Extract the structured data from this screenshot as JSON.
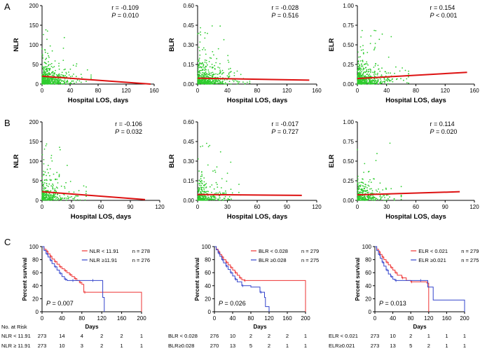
{
  "panel_labels": [
    "A",
    "B",
    "C"
  ],
  "chart_data": [
    {
      "panel": "A",
      "type": "scatter",
      "xlabel": "Hospital LOS, days",
      "ylabel": "NLR",
      "xlim": [
        0,
        160
      ],
      "ylim": [
        0,
        200
      ],
      "xticks": [
        "0",
        "40",
        "80",
        "120",
        "160"
      ],
      "yticks": [
        "0",
        "50",
        "100",
        "150",
        "200"
      ],
      "r_text": "r = -0.109",
      "p_prefix": "P",
      "p_text": " = 0.010",
      "fit": [
        [
          0,
          20
        ],
        [
          155,
          0
        ]
      ]
    },
    {
      "panel": "A",
      "type": "scatter",
      "xlabel": "Hospital LOS, days",
      "ylabel": "BLR",
      "xlim": [
        0,
        160
      ],
      "ylim": [
        0,
        0.6
      ],
      "xticks": [
        "0",
        "40",
        "80",
        "120",
        "160"
      ],
      "yticks": [
        "0.00",
        "0.15",
        "0.30",
        "0.45",
        "0.60"
      ],
      "r_text": "r = -0.028",
      "p_prefix": "P",
      "p_text": " = 0.516",
      "fit": [
        [
          0,
          0.045
        ],
        [
          150,
          0.03
        ]
      ]
    },
    {
      "panel": "A",
      "type": "scatter",
      "xlabel": "Hospital LOS, days",
      "ylabel": "ELR",
      "xlim": [
        0,
        160
      ],
      "ylim": [
        0,
        1.0
      ],
      "xticks": [
        "0",
        "40",
        "80",
        "120",
        "160"
      ],
      "yticks": [
        "0.00",
        "0.25",
        "0.50",
        "0.75",
        "1.00"
      ],
      "r_text": "r = 0.154",
      "p_prefix": "P",
      "p_text": " < 0.001",
      "fit": [
        [
          0,
          0.07
        ],
        [
          150,
          0.15
        ]
      ]
    },
    {
      "panel": "B",
      "type": "scatter",
      "xlabel": "Hospital LOS, days",
      "ylabel": "NLR",
      "xlim": [
        0,
        120
      ],
      "ylim": [
        0,
        200
      ],
      "xticks": [
        "0",
        "30",
        "60",
        "90",
        "120"
      ],
      "yticks": [
        "0",
        "50",
        "100",
        "150",
        "200"
      ],
      "r_text": "r = -0.106",
      "p_prefix": "P",
      "p_text": " = 0.032",
      "fit": [
        [
          0,
          22
        ],
        [
          105,
          2
        ]
      ]
    },
    {
      "panel": "B",
      "type": "scatter",
      "xlabel": "Hospital LOS, days",
      "ylabel": "BLR",
      "xlim": [
        0,
        120
      ],
      "ylim": [
        0,
        0.6
      ],
      "xticks": [
        "0",
        "30",
        "60",
        "90",
        "120"
      ],
      "yticks": [
        "0.00",
        "0.15",
        "0.30",
        "0.45",
        "0.60"
      ],
      "r_text": "r = -0.017",
      "p_prefix": "P",
      "p_text": " = 0.727",
      "fit": [
        [
          0,
          0.045
        ],
        [
          105,
          0.038
        ]
      ]
    },
    {
      "panel": "B",
      "type": "scatter",
      "xlabel": "Hospital LOS, days",
      "ylabel": "ELR",
      "xlim": [
        0,
        120
      ],
      "ylim": [
        0,
        1.0
      ],
      "xticks": [
        "0",
        "30",
        "60",
        "90",
        "120"
      ],
      "yticks": [
        "0.00",
        "0.25",
        "0.50",
        "0.75",
        "1.00"
      ],
      "r_text": "r = 0.114",
      "p_prefix": "P",
      "p_text": " = 0.020",
      "fit": [
        [
          0,
          0.07
        ],
        [
          105,
          0.11
        ]
      ]
    },
    {
      "panel": "C",
      "type": "line",
      "xlabel": "Days",
      "ylabel": "Percent survival",
      "xlim": [
        0,
        200
      ],
      "ylim": [
        0,
        100
      ],
      "xticks": [
        "0",
        "40",
        "80",
        "120",
        "160",
        "200"
      ],
      "yticks": [
        "0",
        "20",
        "40",
        "60",
        "80",
        "100"
      ],
      "p_prefix": "P",
      "p_text": " = 0.007",
      "series": [
        {
          "name": "NLR < 11.91",
          "n_text": "n = 278",
          "color": "#ee3333",
          "steps": [
            [
              0,
              100
            ],
            [
              4,
              96
            ],
            [
              8,
              93
            ],
            [
              12,
              89
            ],
            [
              16,
              85
            ],
            [
              20,
              81
            ],
            [
              25,
              77
            ],
            [
              30,
              73
            ],
            [
              35,
              69
            ],
            [
              40,
              66
            ],
            [
              45,
              63
            ],
            [
              50,
              60
            ],
            [
              55,
              57
            ],
            [
              60,
              54
            ],
            [
              65,
              51
            ],
            [
              70,
              48
            ],
            [
              75,
              45
            ],
            [
              80,
              42
            ],
            [
              84,
              30
            ],
            [
              200,
              30
            ],
            [
              200,
              0
            ]
          ]
        },
        {
          "name": "NLR ≥11.91",
          "n_text": "n = 276",
          "color": "#3344cc",
          "steps": [
            [
              0,
              100
            ],
            [
              4,
              94
            ],
            [
              8,
              89
            ],
            [
              12,
              84
            ],
            [
              16,
              79
            ],
            [
              20,
              74
            ],
            [
              25,
              69
            ],
            [
              30,
              64
            ],
            [
              35,
              59
            ],
            [
              40,
              54
            ],
            [
              45,
              50
            ],
            [
              50,
              48
            ],
            [
              60,
              48
            ],
            [
              70,
              48
            ],
            [
              100,
              48
            ],
            [
              118,
              48
            ],
            [
              122,
              22
            ],
            [
              125,
              0
            ]
          ]
        }
      ],
      "risk_header": "No. at Risk",
      "risk": [
        {
          "label": "NLR < 11.91",
          "values": [
            "273",
            "14",
            "4",
            "2",
            "2",
            "1"
          ]
        },
        {
          "label": "NLR ≥ 11.91",
          "values": [
            "273",
            "10",
            "3",
            "2",
            "1",
            "1"
          ]
        }
      ]
    },
    {
      "panel": "C",
      "type": "line",
      "xlabel": "Days",
      "ylabel": "Percent survival",
      "xlim": [
        0,
        200
      ],
      "ylim": [
        0,
        100
      ],
      "xticks": [
        "0",
        "40",
        "80",
        "120",
        "160",
        "200"
      ],
      "yticks": [
        "0",
        "20",
        "40",
        "60",
        "80",
        "100"
      ],
      "p_prefix": "P",
      "p_text": " = 0.026",
      "series": [
        {
          "name": "BLR < 0.028",
          "n_text": "n = 279",
          "color": "#ee3333",
          "steps": [
            [
              0,
              100
            ],
            [
              4,
              96
            ],
            [
              8,
              92
            ],
            [
              12,
              88
            ],
            [
              16,
              84
            ],
            [
              20,
              80
            ],
            [
              25,
              76
            ],
            [
              30,
              72
            ],
            [
              35,
              68
            ],
            [
              40,
              64
            ],
            [
              45,
              60
            ],
            [
              50,
              56
            ],
            [
              55,
              52
            ],
            [
              60,
              49
            ],
            [
              65,
              48
            ],
            [
              200,
              48
            ],
            [
              200,
              0
            ]
          ]
        },
        {
          "name": "BLR ≥0.028",
          "n_text": "n = 275",
          "color": "#3344cc",
          "steps": [
            [
              0,
              100
            ],
            [
              4,
              95
            ],
            [
              8,
              90
            ],
            [
              12,
              85
            ],
            [
              16,
              80
            ],
            [
              20,
              75
            ],
            [
              25,
              70
            ],
            [
              30,
              65
            ],
            [
              35,
              60
            ],
            [
              40,
              55
            ],
            [
              45,
              50
            ],
            [
              50,
              46
            ],
            [
              60,
              40
            ],
            [
              80,
              38
            ],
            [
              100,
              30
            ],
            [
              110,
              22
            ],
            [
              112,
              8
            ],
            [
              118,
              8
            ],
            [
              120,
              0
            ]
          ]
        }
      ],
      "risk_header": "",
      "risk": [
        {
          "label": "BLR < 0.028",
          "values": [
            "276",
            "10",
            "2",
            "2",
            "2",
            "1"
          ]
        },
        {
          "label": "BLR≥0.028",
          "values": [
            "270",
            "13",
            "5",
            "2",
            "1",
            "1"
          ]
        }
      ]
    },
    {
      "panel": "C",
      "type": "line",
      "xlabel": "Days",
      "ylabel": "Percent survival",
      "xlim": [
        0,
        200
      ],
      "ylim": [
        0,
        100
      ],
      "xticks": [
        "0",
        "40",
        "80",
        "120",
        "160",
        "200"
      ],
      "yticks": [
        "0",
        "20",
        "40",
        "60",
        "80",
        "100"
      ],
      "p_prefix": "P",
      "p_text": " = 0.013",
      "series": [
        {
          "name": "ELR < 0.021",
          "n_text": "n = 279",
          "color": "#ee3333",
          "steps": [
            [
              0,
              100
            ],
            [
              4,
              96
            ],
            [
              8,
              92
            ],
            [
              12,
              88
            ],
            [
              16,
              84
            ],
            [
              20,
              80
            ],
            [
              25,
              76
            ],
            [
              30,
              72
            ],
            [
              35,
              68
            ],
            [
              40,
              64
            ],
            [
              45,
              60
            ],
            [
              50,
              56
            ],
            [
              60,
              52
            ],
            [
              70,
              48
            ],
            [
              80,
              46
            ],
            [
              116,
              44
            ],
            [
              120,
              0
            ]
          ]
        },
        {
          "name": "ELR ≥0.021",
          "n_text": "n = 275",
          "color": "#3344cc",
          "steps": [
            [
              0,
              100
            ],
            [
              4,
              94
            ],
            [
              8,
              88
            ],
            [
              12,
              82
            ],
            [
              16,
              76
            ],
            [
              20,
              70
            ],
            [
              25,
              64
            ],
            [
              30,
              58
            ],
            [
              35,
              54
            ],
            [
              40,
              50
            ],
            [
              45,
              48
            ],
            [
              60,
              48
            ],
            [
              100,
              48
            ],
            [
              118,
              38
            ],
            [
              130,
              18
            ],
            [
              198,
              18
            ],
            [
              200,
              0
            ]
          ]
        }
      ],
      "risk_header": "",
      "risk": [
        {
          "label": "ELR < 0.021",
          "values": [
            "273",
            "10",
            "2",
            "1",
            "1",
            "1"
          ]
        },
        {
          "label": "ELR≥0.021",
          "values": [
            "273",
            "13",
            "5",
            "2",
            "1",
            "1"
          ]
        }
      ]
    }
  ]
}
